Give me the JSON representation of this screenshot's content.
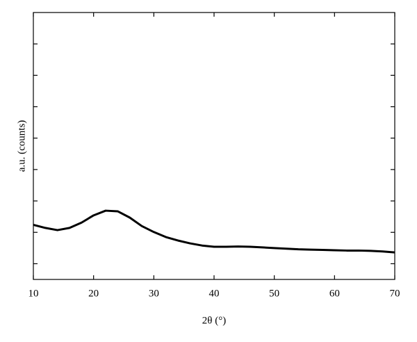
{
  "chart_data": {
    "type": "line",
    "xlabel": "2θ (°)",
    "ylabel": "a.u. (counts)",
    "x": [
      10,
      12,
      14,
      16,
      18,
      20,
      22,
      24,
      26,
      28,
      30,
      32,
      34,
      36,
      38,
      40,
      42,
      44,
      46,
      48,
      50,
      52,
      54,
      56,
      58,
      60,
      62,
      64,
      66,
      68,
      70
    ],
    "series": [
      {
        "color": "#000000",
        "values": [
          1.74,
          1.64,
          1.57,
          1.64,
          1.81,
          2.04,
          2.19,
          2.17,
          1.97,
          1.7,
          1.51,
          1.35,
          1.24,
          1.15,
          1.08,
          1.04,
          1.04,
          1.05,
          1.04,
          1.02,
          1.0,
          0.98,
          0.96,
          0.95,
          0.94,
          0.93,
          0.92,
          0.92,
          0.91,
          0.89,
          0.86
        ]
      }
    ],
    "xlim": [
      10,
      70
    ],
    "xticks": [
      10,
      20,
      30,
      40,
      50,
      60,
      70
    ],
    "ylim": [
      0,
      8.5
    ],
    "yticks": [
      0.5,
      1.5,
      2.5,
      3.5,
      4.5,
      5.5,
      6.5,
      7.5
    ],
    "ytick_labels": false
  }
}
